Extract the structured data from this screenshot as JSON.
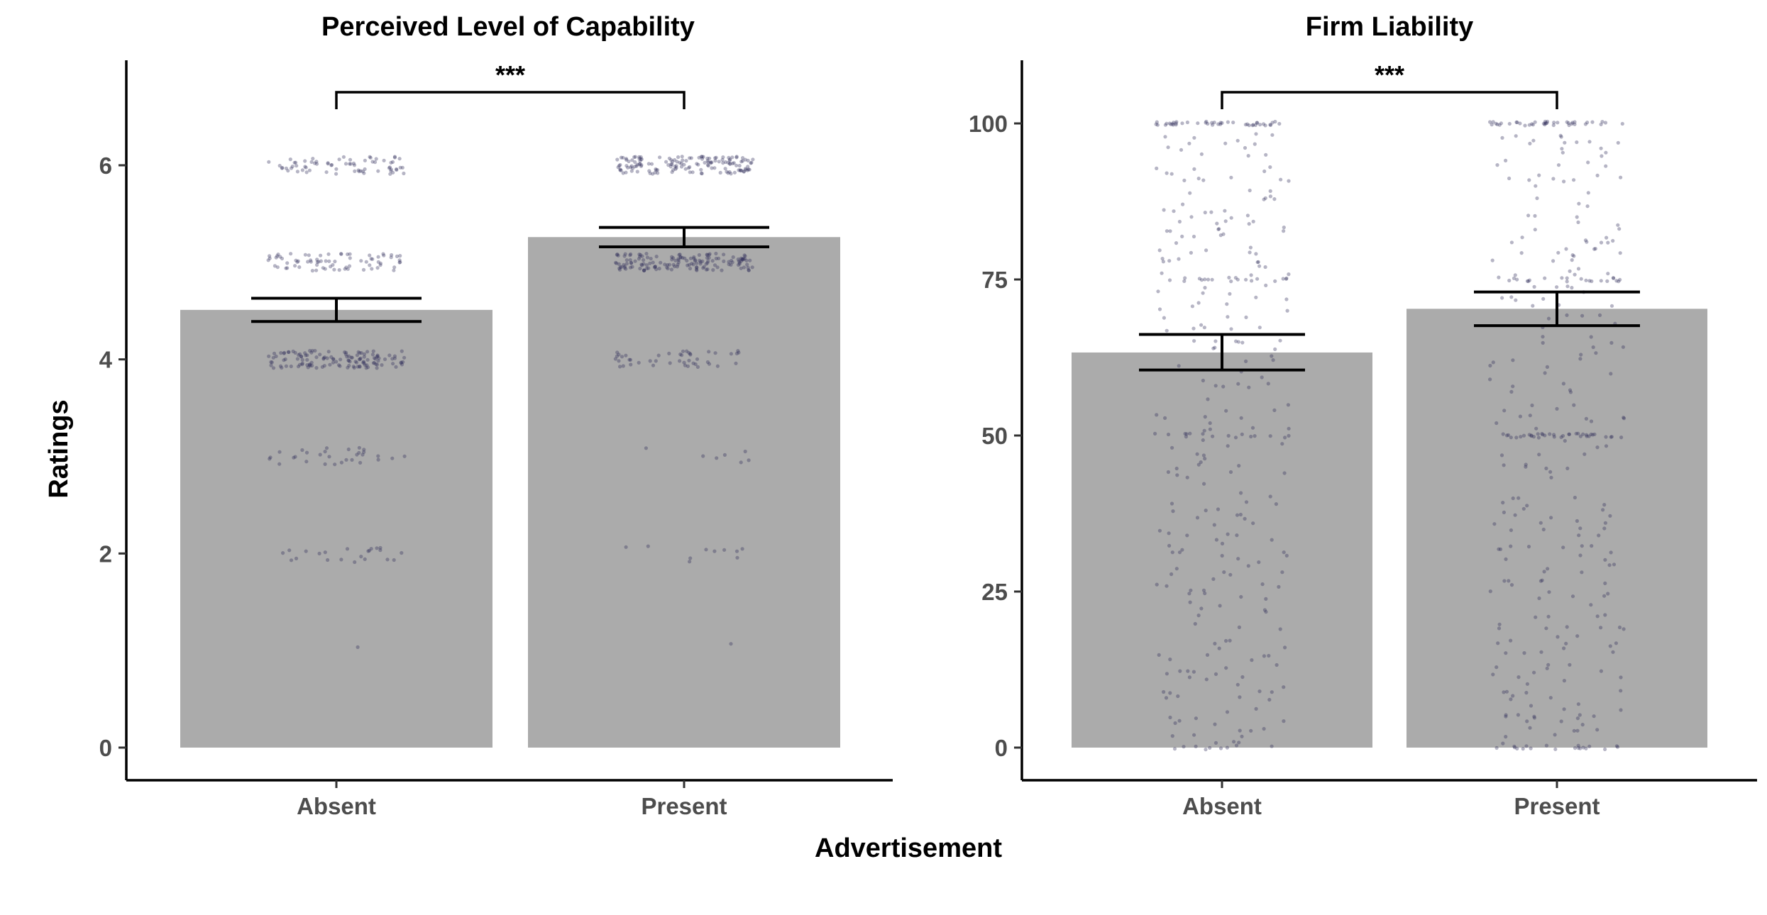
{
  "figure": {
    "shared_xlabel": "Advertisement",
    "shared_ylabel": "Ratings"
  },
  "colors": {
    "bar_fill": "#ababab",
    "point_color": "#2e2b5a",
    "axis": "#000000",
    "tick_label": "#4d4d4d"
  },
  "chart_data": [
    {
      "type": "bar",
      "title": "Perceived Level of Capability",
      "xlabel": "Advertisement",
      "ylabel": "Ratings",
      "categories": [
        "Absent",
        "Present"
      ],
      "values": [
        4.51,
        5.26
      ],
      "error_bars": [
        {
          "lower": 4.39,
          "upper": 4.63
        },
        {
          "lower": 5.16,
          "upper": 5.36
        }
      ],
      "ylim": [
        -0.33,
        7.0
      ],
      "yticks": [
        0,
        2,
        4,
        6
      ],
      "ytick_labels": [
        "0",
        "2",
        "4",
        "6"
      ],
      "significance": {
        "label": "***",
        "between": [
          "Absent",
          "Present"
        ],
        "level": 6.75
      },
      "grid": false,
      "legend": "none",
      "jitter_points": {
        "Absent": {
          "1": 1,
          "2": 22,
          "3": 30,
          "4": 130,
          "5": 75,
          "6": 70
        },
        "Present": {
          "1": 1,
          "2": 10,
          "3": 7,
          "4": 45,
          "5": 150,
          "6": 150
        }
      }
    },
    {
      "type": "bar",
      "title": "Firm Liability",
      "xlabel": "Advertisement",
      "ylabel": "Ratings",
      "categories": [
        "Absent",
        "Present"
      ],
      "values": [
        63.3,
        70.3
      ],
      "error_bars": [
        {
          "lower": 60.5,
          "upper": 66.2
        },
        {
          "lower": 67.6,
          "upper": 73.0
        }
      ],
      "ylim": [
        -5,
        110
      ],
      "yticks": [
        0,
        25,
        50,
        75,
        100
      ],
      "ytick_labels": [
        "0",
        "25",
        "50",
        "75",
        "100"
      ],
      "significance": {
        "label": "***",
        "between": [
          "Absent",
          "Present"
        ],
        "level": 105
      },
      "grid": false,
      "legend": "none",
      "jitter_points": {
        "Absent": {
          "n": 340
        },
        "Present": {
          "n": 360
        }
      }
    }
  ]
}
